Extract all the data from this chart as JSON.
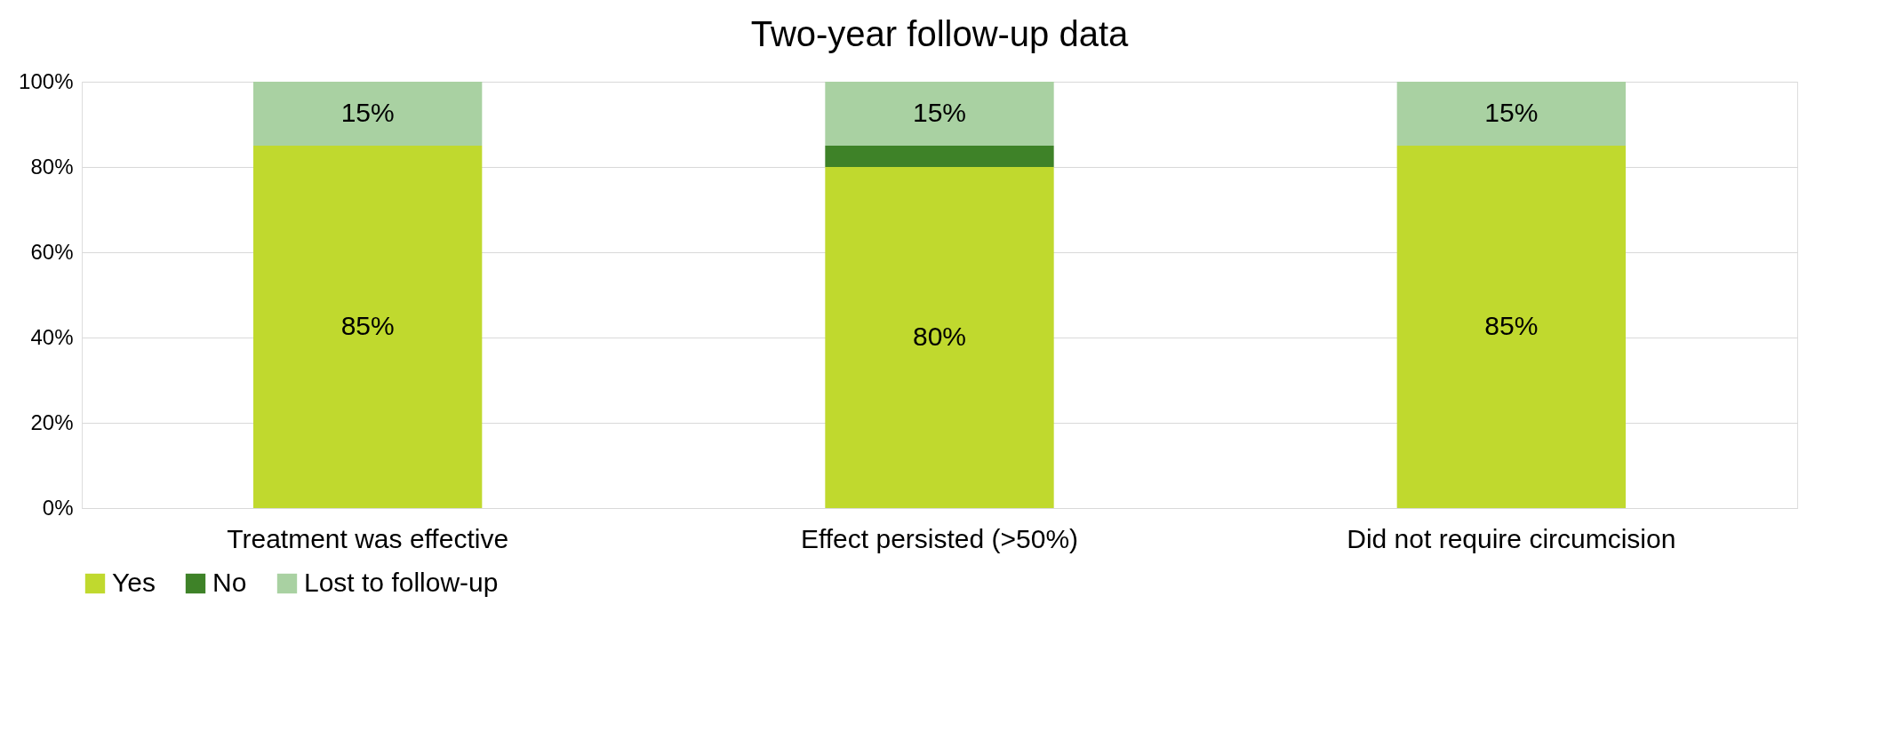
{
  "chart_data": {
    "type": "bar",
    "title": "Two-year follow-up data",
    "stacked": true,
    "categories": [
      "Treatment was effective",
      "Effect persisted (>50%)",
      "Did not require circumcision"
    ],
    "series": [
      {
        "name": "Yes",
        "color": "#c0d92e",
        "values": [
          85,
          80,
          85
        ],
        "value_labels": [
          "85%",
          "80%",
          "85%"
        ]
      },
      {
        "name": "No",
        "color": "#3e8228",
        "values": [
          0,
          5,
          0
        ],
        "value_labels": [
          null,
          null,
          null
        ]
      },
      {
        "name": "Lost to follow-up",
        "color": "#a9d1a2",
        "values": [
          15,
          15,
          15
        ],
        "value_labels": [
          "15%",
          "15%",
          "15%"
        ]
      }
    ],
    "ylim": [
      0,
      100
    ],
    "yticks": [
      {
        "value": 0,
        "label": "0%"
      },
      {
        "value": 20,
        "label": "20%"
      },
      {
        "value": 40,
        "label": "40%"
      },
      {
        "value": 60,
        "label": "60%"
      },
      {
        "value": 80,
        "label": "80%"
      },
      {
        "value": 100,
        "label": "100%"
      }
    ],
    "grid": "y",
    "legend": "bottom"
  }
}
